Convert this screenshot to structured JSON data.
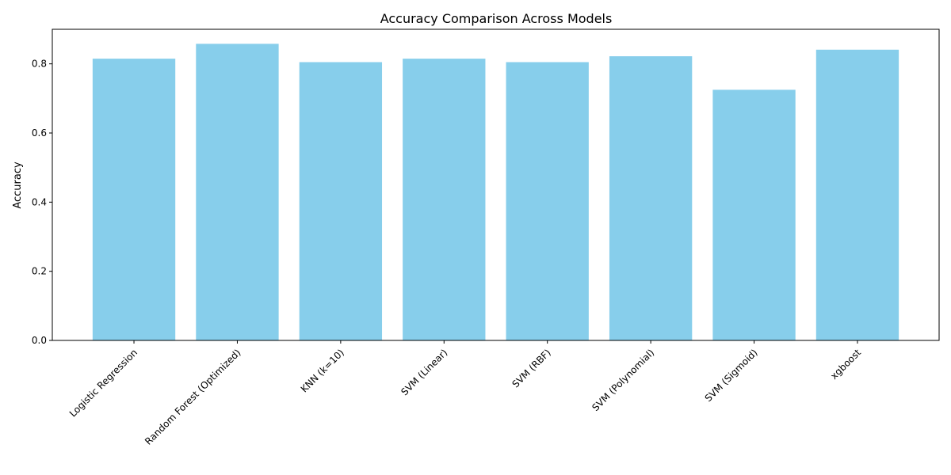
{
  "chart_data": {
    "type": "bar",
    "title": "Accuracy Comparison Across Models",
    "xlabel": "",
    "ylabel": "Accuracy",
    "categories": [
      "Logistic Regression",
      "Random Forest (Optimized)",
      "KNN (k=10)",
      "SVM (Linear)",
      "SVM (RBF)",
      "SVM (Polynomial)",
      "SVM (Sigmoid)",
      "xgboost"
    ],
    "values": [
      0.815,
      0.858,
      0.805,
      0.815,
      0.805,
      0.822,
      0.725,
      0.841
    ],
    "ylim": [
      0,
      0.9
    ],
    "yticks": [
      0.0,
      0.2,
      0.4,
      0.6,
      0.8
    ],
    "ytick_labels": [
      "0.0",
      "0.2",
      "0.4",
      "0.6",
      "0.8"
    ],
    "bar_color": "#87ceeb",
    "grid": false,
    "xtick_rotation_deg": 45
  }
}
